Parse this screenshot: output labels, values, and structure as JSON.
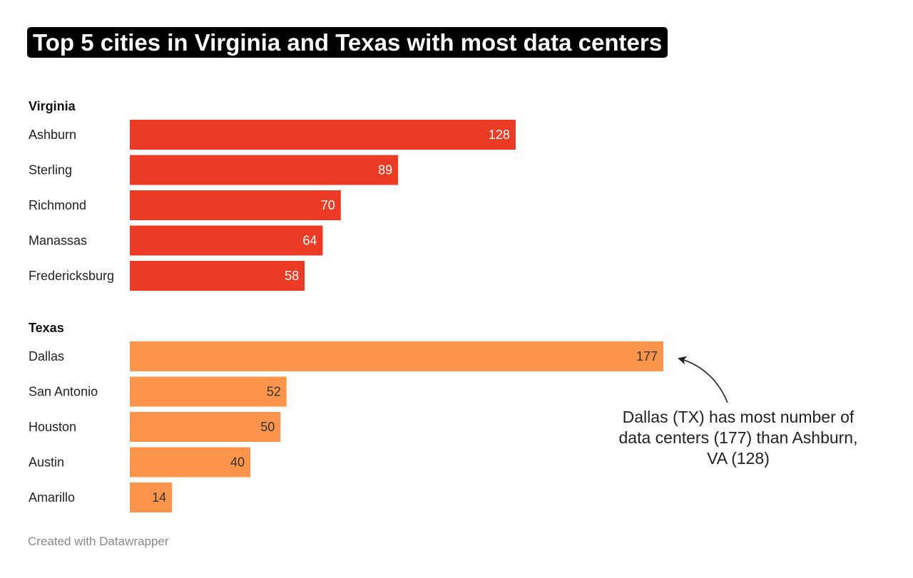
{
  "title": "Top 5 cities in Virginia and Texas with most data centers",
  "footer": "Created with Datawrapper",
  "colors": {
    "virginia": "#ec3b24",
    "texas": "#fc944c",
    "title_bg": "#000000"
  },
  "annotation": {
    "lines": [
      "Dallas (TX) has most number of",
      "data centers (177) than Ashburn,",
      "VA (128)"
    ]
  },
  "chart_data": {
    "type": "bar",
    "orientation": "horizontal",
    "title": "Top 5 cities in Virginia and Texas with most data centers",
    "xlim": [
      0,
      177
    ],
    "groups": [
      {
        "name": "Virginia",
        "color": "#ec3b24",
        "categories": [
          "Ashburn",
          "Sterling",
          "Richmond",
          "Manassas",
          "Fredericksburg"
        ],
        "values": [
          128,
          89,
          70,
          64,
          58
        ]
      },
      {
        "name": "Texas",
        "color": "#fc944c",
        "categories": [
          "Dallas",
          "San Antonio",
          "Houston",
          "Austin",
          "Amarillo"
        ],
        "values": [
          177,
          52,
          50,
          40,
          14
        ]
      }
    ]
  }
}
